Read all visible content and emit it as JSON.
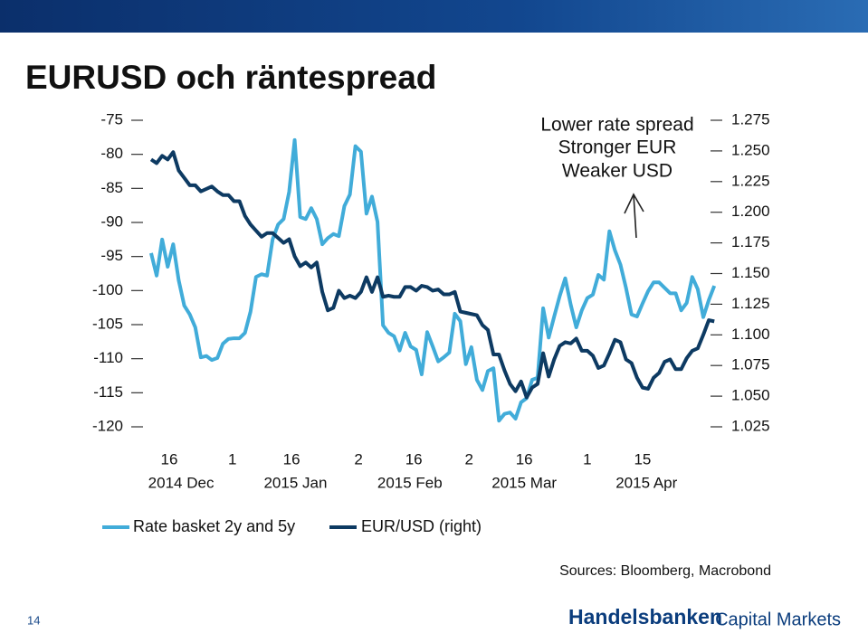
{
  "header": {
    "title": "EURUSD och räntespread"
  },
  "chart_data": {
    "type": "line",
    "x": [
      10.4,
      11.8,
      13.2,
      14.6,
      16,
      17.4,
      18.8,
      20.2,
      21.6,
      23,
      24.4,
      25.8,
      27.2,
      28.6,
      30,
      31.4,
      32.8,
      34.2,
      35.6,
      37,
      38.4,
      39.8,
      41.2,
      42.6,
      44,
      45.4,
      46.8,
      48.2,
      49.6,
      51,
      52.4,
      53.8,
      55.2,
      56.6,
      58,
      59.4,
      60.8,
      62.2,
      63.6,
      65,
      66.4,
      67.8,
      69.2,
      70.6,
      72,
      73.4,
      74.8,
      76.2,
      77.6,
      79,
      80.4,
      81.8,
      83.2,
      84.6,
      86,
      87.4,
      88.8,
      90.2,
      91.6,
      93,
      94.4,
      95.8,
      97.2,
      98.6,
      100,
      101.4,
      102.8,
      104.2,
      105.6,
      107,
      108.4,
      109.8,
      111.2,
      112.6,
      114,
      115.4,
      116.8,
      118.2,
      119.6,
      121,
      122.4,
      123.8,
      125.2,
      126.6,
      128,
      129.4,
      130.8,
      132.2,
      133.6,
      135,
      136.4,
      137.8,
      139.2,
      140.6,
      142,
      143.4,
      144.8,
      146.2,
      147.6,
      149,
      150.4,
      151.8,
      153.2
    ],
    "xlim": [
      8,
      154
    ],
    "xticks": [
      {
        "value": 15,
        "label": "16"
      },
      {
        "value": 31,
        "label": "1"
      },
      {
        "value": 46,
        "label": "16"
      },
      {
        "value": 63,
        "label": "2"
      },
      {
        "value": 77,
        "label": "16"
      },
      {
        "value": 91,
        "label": "2"
      },
      {
        "value": 105,
        "label": "16"
      },
      {
        "value": 121,
        "label": "1"
      },
      {
        "value": 135,
        "label": "15"
      }
    ],
    "month_ticks": [
      {
        "value": 18,
        "label": "2014 Dec"
      },
      {
        "value": 47,
        "label": "2015 Jan"
      },
      {
        "value": 76,
        "label": "2015 Feb"
      },
      {
        "value": 105,
        "label": "2015 Mar"
      },
      {
        "value": 136,
        "label": "2015 Apr"
      }
    ],
    "ylim": [
      -120,
      -75
    ],
    "yticks": [
      -75,
      -80,
      -85,
      -90,
      -95,
      -100,
      -105,
      -110,
      -115,
      -120
    ],
    "y2lim": [
      1.025,
      1.275
    ],
    "y2ticks": [
      1.275,
      {
        "value": 1.25,
        "label": "1.250"
      },
      1.225,
      {
        "value": 1.2,
        "label": "1.200"
      },
      1.175,
      {
        "value": 1.15,
        "label": "1.150"
      },
      1.125,
      {
        "value": 1.1,
        "label": "1.100"
      },
      1.075,
      {
        "value": 1.05,
        "label": "1.050"
      },
      1.025
    ],
    "annotation": [
      "Lower rate spread",
      "Stronger EUR",
      "Weaker USD"
    ],
    "series": [
      {
        "name": "Rate basket 2y and 5y",
        "color": "#41acd9",
        "values": [
          -94.5,
          -97.8,
          -92.5,
          -96.5,
          -93.2,
          -98.5,
          -102.2,
          -103.5,
          -105.4,
          -109.8,
          -109.6,
          -110.2,
          -109.9,
          -107.8,
          -107.1,
          -107.0,
          -107.0,
          -106.2,
          -103.1,
          -98.0,
          -97.6,
          -97.8,
          -92.5,
          -90.3,
          -89.5,
          -85.5,
          -77.9,
          -89.2,
          -89.5,
          -87.9,
          -89.5,
          -93.2,
          -92.3,
          -91.7,
          -92.0,
          -87.6,
          -85.9,
          -78.8,
          -79.6,
          -88.7,
          -86.2,
          -89.9,
          -105.1,
          -106.2,
          -106.7,
          -108.8,
          -106.2,
          -108.2,
          -108.7,
          -112.3,
          -106.1,
          -108.2,
          -110.4,
          -109.8,
          -109.1,
          -103.4,
          -104.5,
          -110.8,
          -108.3,
          -113.1,
          -114.6,
          -111.8,
          -111.4,
          -119.1,
          -118.1,
          -117.9,
          -118.8,
          -116.4,
          -115.8,
          -113.1,
          -112.8,
          -102.6,
          -106.9,
          -103.8,
          -100.8,
          -98.2,
          -102.1,
          -105.4,
          -102.9,
          -101.1,
          -100.6,
          -97.7,
          -98.4,
          -91.3,
          -94.1,
          -96.2,
          -99.6,
          -103.5,
          -103.8,
          -101.9,
          -100.1,
          -98.8,
          -98.8,
          -99.6,
          -100.4,
          -100.4,
          -102.9,
          -101.8,
          -98.0,
          -99.8,
          -103.9,
          -101.4,
          -99.3
        ]
      },
      {
        "name": "EUR/USD (right)",
        "color": "#0d3a62",
        "axis": "y2",
        "values": [
          1.243,
          1.24,
          1.246,
          1.243,
          1.249,
          1.234,
          1.228,
          1.222,
          1.222,
          1.217,
          1.219,
          1.221,
          1.217,
          1.214,
          1.214,
          1.209,
          1.209,
          1.197,
          1.19,
          1.185,
          1.18,
          1.183,
          1.183,
          1.179,
          1.175,
          1.178,
          1.164,
          1.156,
          1.159,
          1.155,
          1.159,
          1.135,
          1.12,
          1.122,
          1.136,
          1.13,
          1.132,
          1.13,
          1.135,
          1.147,
          1.135,
          1.147,
          1.131,
          1.132,
          1.131,
          1.131,
          1.139,
          1.139,
          1.136,
          1.14,
          1.139,
          1.136,
          1.137,
          1.133,
          1.133,
          1.135,
          1.119,
          1.118,
          1.117,
          1.116,
          1.108,
          1.104,
          1.084,
          1.084,
          1.071,
          1.06,
          1.054,
          1.062,
          1.049,
          1.057,
          1.06,
          1.085,
          1.066,
          1.08,
          1.091,
          1.094,
          1.093,
          1.097,
          1.087,
          1.087,
          1.083,
          1.073,
          1.075,
          1.085,
          1.096,
          1.094,
          1.08,
          1.077,
          1.065,
          1.057,
          1.056,
          1.065,
          1.069,
          1.078,
          1.08,
          1.072,
          1.072,
          1.081,
          1.087,
          1.089,
          1.1,
          1.112,
          1.111
        ]
      }
    ]
  },
  "footer": {
    "sources": "Sources: Bloomberg, Macrobond",
    "page": "14",
    "logo_name": "Handelsbanken",
    "logo_tagline": "Capital Markets"
  }
}
